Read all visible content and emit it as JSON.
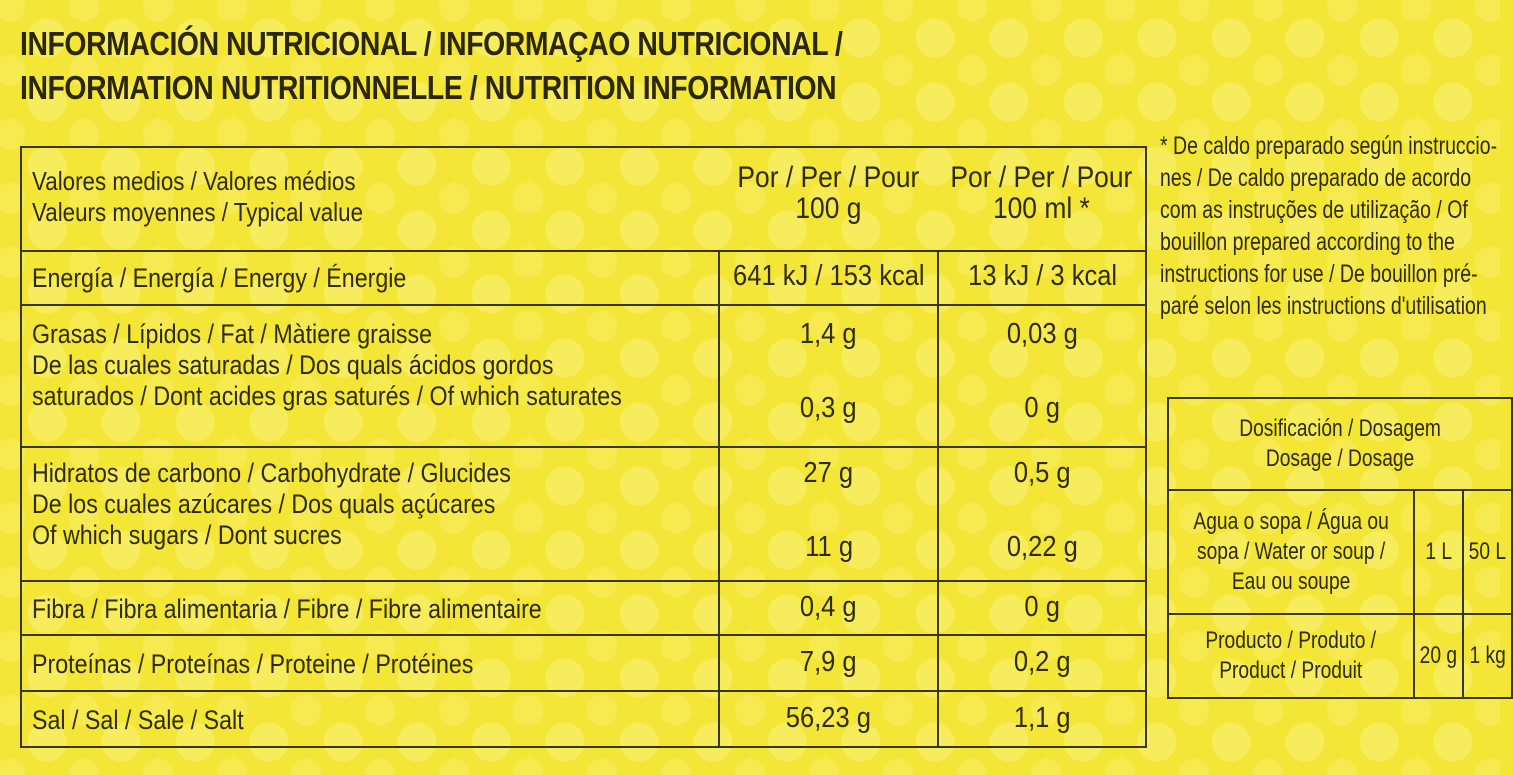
{
  "title": {
    "line1": "INFORMACIÓN NUTRICIONAL / INFORMAÇAO NUTRICIONAL /",
    "line2": "INFORMATION NUTRITIONNELLE / NUTRITION INFORMATION"
  },
  "table": {
    "header": {
      "label_line1": "Valores medios / Valores médios",
      "label_line2": "Valeurs moyennes / Typical value",
      "col1_line1": "Por / Per / Pour",
      "col1_line2": "100 g",
      "col2_line1": "Por / Per / Pour",
      "col2_line2": "100 ml *"
    },
    "rows": [
      {
        "label": "Energía / Energía / Energy / Énergie",
        "per100g": "641 kJ / 153 kcal",
        "per100ml": "13 kJ / 3 kcal"
      },
      {
        "label": "Grasas / Lípidos / Fat / Màtiere graisse",
        "per100g": "1,4 g",
        "per100ml": "0,03 g",
        "sub_line1": "De las cuales saturadas / Dos quals ácidos gordos",
        "sub_line2": "saturados / Dont acides gras saturés / Of which saturates",
        "sub_per100g": "0,3 g",
        "sub_per100ml": "0 g"
      },
      {
        "label": "Hidratos de carbono / Carbohydrate / Glucides",
        "per100g": "27 g",
        "per100ml": "0,5 g",
        "sub_line1": "De los cuales azúcares / Dos quals açúcares",
        "sub_line2": "Of which sugars / Dont sucres",
        "sub_per100g": "11 g",
        "sub_per100ml": "0,22 g"
      },
      {
        "label": "Fibra / Fibra alimentaria / Fibre / Fibre alimentaire",
        "per100g": "0,4 g",
        "per100ml": "0 g"
      },
      {
        "label": "Proteínas / Proteínas / Proteine / Protéines",
        "per100g": "7,9 g",
        "per100ml": "0,2 g"
      },
      {
        "label": "Sal / Sal / Sale / Salt",
        "per100g": "56,23 g",
        "per100ml": "1,1 g"
      }
    ]
  },
  "footnote": {
    "lines": [
      "* De caldo preparado según instruccio-",
      "nes / De caldo preparado de acordo",
      "com as instruções de utilização / Of",
      "bouillon prepared according to the",
      "instructions for use / De bouillon pré-",
      "paré selon les instructions d'utilisation"
    ]
  },
  "dosage": {
    "header_line1": "Dosificación / Dosagem",
    "header_line2": "Dosage / Dosage",
    "water_line1": "Agua o sopa / Água ou",
    "water_line2": "sopa / Water or soup /",
    "water_line3": "Eau ou soupe",
    "water_v1": "1 L",
    "water_v2": "50 L",
    "product_line1": "Producto / Produto /",
    "product_line2": "Product / Produit",
    "product_v1": "20 g",
    "product_v2": "1 kg"
  },
  "colors": {
    "background": "#f4e636",
    "text": "#2e2c0c",
    "rule": "#3a3610"
  }
}
